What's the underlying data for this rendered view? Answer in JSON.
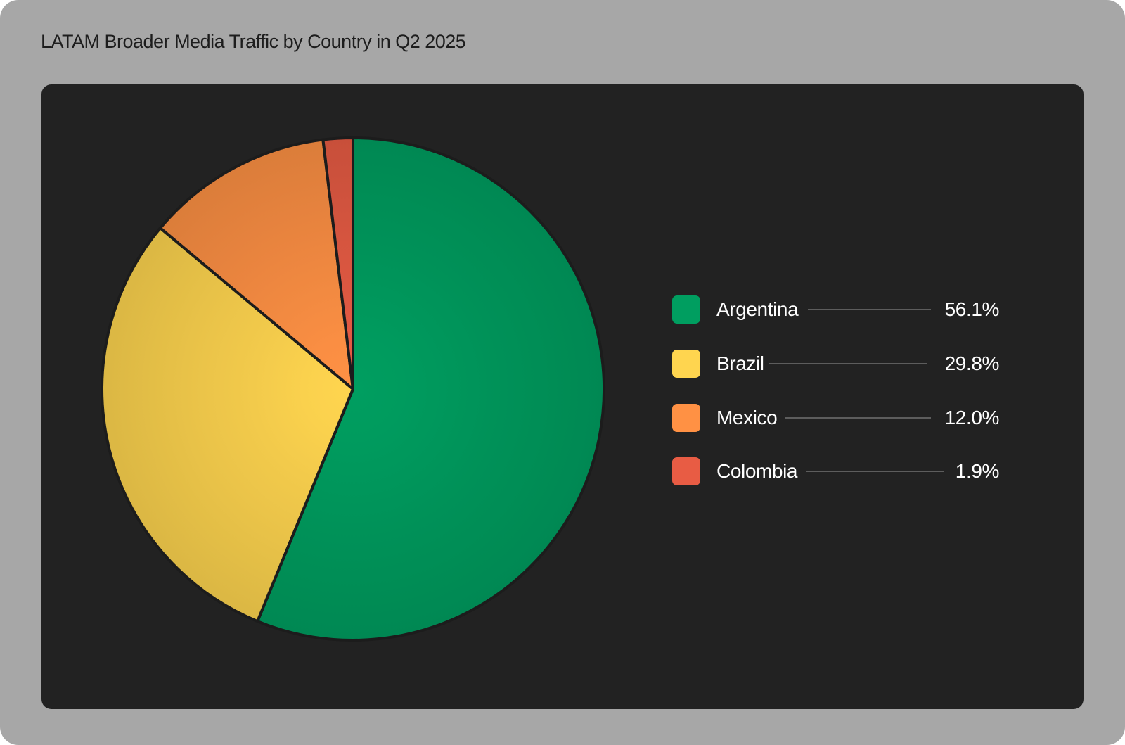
{
  "chart_data": {
    "type": "pie",
    "title": "LATAM Broader Media Traffic by Country in Q2 2025",
    "slices": [
      {
        "label": "Argentina",
        "value": 56.1,
        "display": "56.1%",
        "color": "#009e60"
      },
      {
        "label": "Brazil",
        "value": 29.8,
        "display": "29.8%",
        "color": "#ffd54f"
      },
      {
        "label": "Mexico",
        "value": 12.0,
        "display": "12.0%",
        "color": "#ff9144"
      },
      {
        "label": "Colombia",
        "value": 1.9,
        "display": "1.9%",
        "color": "#e85c44"
      }
    ],
    "legend_position": "right"
  },
  "colors": {
    "page_background": "#a7a7a7",
    "panel_background": "#222222",
    "slice_border": "#1c1c1c"
  }
}
